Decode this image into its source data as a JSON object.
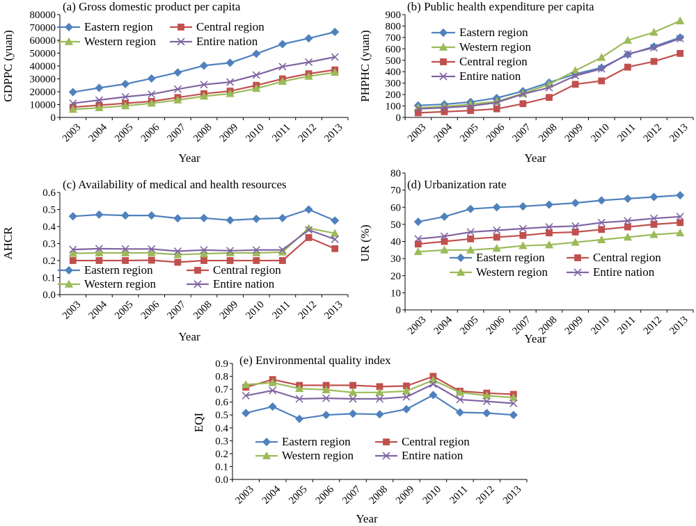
{
  "styles": {
    "Eastern region": {
      "color": "#4F81BD",
      "marker": "diamond"
    },
    "Central region": {
      "color": "#C0504D",
      "marker": "square"
    },
    "Western region": {
      "color": "#9BBB59",
      "marker": "triangle"
    },
    "Entire nation": {
      "color": "#8064A2",
      "marker": "x"
    }
  },
  "chart_data": [
    {
      "id": "a",
      "type": "line",
      "title": "(a) Gross domestic product per capita",
      "xlabel": "Year",
      "ylabel": "GDPPC (yuan)",
      "ylim": [
        0,
        80000
      ],
      "yticks": [
        "0",
        "10000",
        "20000",
        "30000",
        "40000",
        "50000",
        "60000",
        "70000",
        "80000"
      ],
      "x": [
        "2003",
        "2004",
        "2005",
        "2006",
        "2007",
        "2008",
        "2009",
        "2010",
        "2011",
        "2012",
        "2013"
      ],
      "legend": "top-left, two columns",
      "grid": false,
      "series": [
        {
          "name": "Eastern region",
          "values": [
            19700,
            23000,
            26000,
            30300,
            35000,
            40300,
            42500,
            49500,
            57000,
            61500,
            66500
          ]
        },
        {
          "name": "Central region",
          "values": [
            8000,
            9500,
            11000,
            12500,
            15500,
            18500,
            20500,
            25000,
            30000,
            34000,
            37000
          ]
        },
        {
          "name": "Western region",
          "values": [
            6200,
            7500,
            9000,
            11000,
            13500,
            16500,
            18500,
            22500,
            28000,
            32000,
            35000
          ]
        },
        {
          "name": "Entire nation",
          "values": [
            11000,
            13500,
            16000,
            18000,
            22000,
            25500,
            27500,
            33000,
            39500,
            43000,
            47000
          ]
        }
      ]
    },
    {
      "id": "b",
      "type": "line",
      "title": "(b) Public health expenditure per capita",
      "xlabel": "Year",
      "ylabel": "PHPHC (yuan)",
      "ylim": [
        0,
        900
      ],
      "yticks": [
        "0",
        "100",
        "200",
        "300",
        "400",
        "500",
        "600",
        "700",
        "800",
        "900"
      ],
      "x": [
        "2003",
        "2004",
        "2005",
        "2006",
        "2007",
        "2008",
        "2009",
        "2010",
        "2011",
        "2012",
        "2013"
      ],
      "legend": "top-left, one column",
      "grid": false,
      "series": [
        {
          "name": "Eastern region",
          "values": [
            105,
            115,
            135,
            170,
            230,
            305,
            380,
            435,
            550,
            620,
            700
          ]
        },
        {
          "name": "Western region",
          "values": [
            85,
            95,
            115,
            140,
            210,
            290,
            410,
            525,
            675,
            745,
            845
          ]
        },
        {
          "name": "Central region",
          "values": [
            40,
            50,
            60,
            75,
            120,
            175,
            290,
            320,
            440,
            490,
            560
          ]
        },
        {
          "name": "Entire nation",
          "values": [
            75,
            85,
            100,
            130,
            205,
            260,
            365,
            425,
            555,
            610,
            690
          ]
        }
      ]
    },
    {
      "id": "c",
      "type": "line",
      "title": "(c) Availability of medical and health resources",
      "xlabel": "Year",
      "ylabel": "AHCR",
      "ylim": [
        0,
        0.6
      ],
      "yticks": [
        "0.0",
        "0.1",
        "0.2",
        "0.3",
        "0.4",
        "0.5",
        "0.6"
      ],
      "x": [
        "2003",
        "2004",
        "2005",
        "2006",
        "2007",
        "2008",
        "2009",
        "2010",
        "2011",
        "2012",
        "2013"
      ],
      "legend": "bottom-left, two columns",
      "grid": false,
      "series": [
        {
          "name": "Eastern region",
          "values": [
            0.46,
            0.47,
            0.465,
            0.465,
            0.448,
            0.45,
            0.437,
            0.445,
            0.45,
            0.5,
            0.435
          ]
        },
        {
          "name": "Central region",
          "values": [
            0.2,
            0.2,
            0.2,
            0.202,
            0.19,
            0.2,
            0.2,
            0.2,
            0.2,
            0.335,
            0.27
          ]
        },
        {
          "name": "Western region",
          "values": [
            0.242,
            0.245,
            0.245,
            0.245,
            0.235,
            0.24,
            0.245,
            0.245,
            0.25,
            0.39,
            0.36
          ]
        },
        {
          "name": "Entire nation",
          "values": [
            0.265,
            0.27,
            0.268,
            0.268,
            0.255,
            0.262,
            0.258,
            0.262,
            0.263,
            0.38,
            0.325
          ]
        }
      ]
    },
    {
      "id": "d",
      "type": "line",
      "title": "(d) Urbanization rate",
      "xlabel": "Year",
      "ylabel": "UR (%)",
      "ylim": [
        0,
        80
      ],
      "yticks": [
        "0",
        "10",
        "20",
        "30",
        "40",
        "50",
        "60",
        "70",
        "80"
      ],
      "x": [
        "2003",
        "2004",
        "2005",
        "2006",
        "2007",
        "2008",
        "2009",
        "2010",
        "2011",
        "2012",
        "2013"
      ],
      "legend": "lower-right, two columns",
      "grid": false,
      "series": [
        {
          "name": "Eastern region",
          "values": [
            51.5,
            54.5,
            59,
            60,
            60.5,
            61.5,
            62.5,
            64,
            65,
            66,
            67
          ]
        },
        {
          "name": "Central region",
          "values": [
            38.5,
            40,
            41.5,
            42.5,
            43.5,
            45,
            45.5,
            47,
            48.5,
            50,
            51
          ]
        },
        {
          "name": "Western region",
          "values": [
            34,
            35,
            35,
            36,
            37.5,
            38,
            39.5,
            41,
            42.5,
            44,
            45
          ]
        },
        {
          "name": "Entire nation",
          "values": [
            41.5,
            43,
            45.5,
            46.5,
            47.5,
            48.5,
            49,
            51,
            52,
            53.5,
            54.5
          ]
        }
      ]
    },
    {
      "id": "e",
      "type": "line",
      "title": "(e) Environmental quality index",
      "xlabel": "Year",
      "ylabel": "EQI",
      "ylim": [
        0,
        0.9
      ],
      "yticks": [
        "0.0",
        "0.1",
        "0.2",
        "0.3",
        "0.4",
        "0.5",
        "0.6",
        "0.7",
        "0.8",
        "0.9"
      ],
      "x": [
        "2003",
        "2004",
        "2005",
        "2006",
        "2007",
        "2008",
        "2009",
        "2010",
        "2011",
        "2012",
        "2013"
      ],
      "legend": "center, two columns",
      "grid": false,
      "series": [
        {
          "name": "Eastern region",
          "values": [
            0.515,
            0.565,
            0.47,
            0.5,
            0.51,
            0.505,
            0.545,
            0.655,
            0.52,
            0.515,
            0.5
          ]
        },
        {
          "name": "Central region",
          "values": [
            0.715,
            0.775,
            0.73,
            0.73,
            0.73,
            0.72,
            0.725,
            0.8,
            0.685,
            0.67,
            0.66
          ]
        },
        {
          "name": "Western region",
          "values": [
            0.735,
            0.75,
            0.705,
            0.695,
            0.675,
            0.675,
            0.685,
            0.77,
            0.675,
            0.65,
            0.635
          ]
        },
        {
          "name": "Entire nation",
          "values": [
            0.65,
            0.69,
            0.625,
            0.63,
            0.625,
            0.625,
            0.64,
            0.74,
            0.62,
            0.605,
            0.59
          ]
        }
      ]
    }
  ]
}
